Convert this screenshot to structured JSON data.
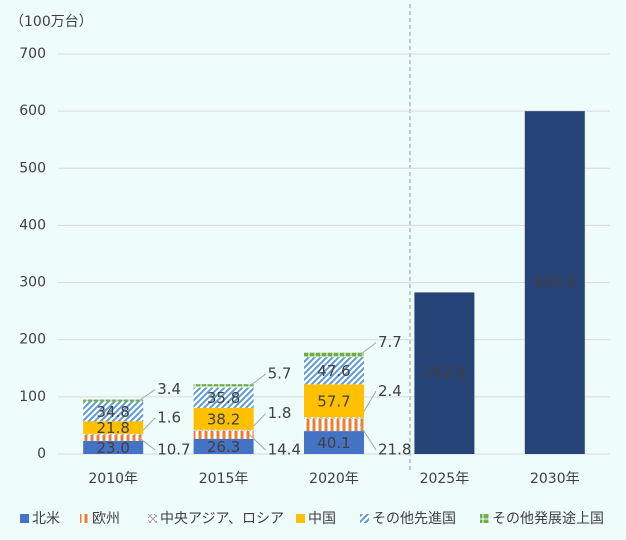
{
  "chart_data": {
    "type": "bar",
    "stacked": true,
    "y_axis_label": "（100万台）",
    "categories": [
      "2010年",
      "2015年",
      "2020年",
      "2025年",
      "2030年"
    ],
    "series": [
      {
        "name": "北米",
        "color": "#4472c4",
        "pattern": "solid",
        "values": [
          23.0,
          26.3,
          40.1,
          null,
          null
        ],
        "value_labels": [
          "23.0",
          "26.3",
          "40.1",
          null,
          null
        ]
      },
      {
        "name": "欧州",
        "color": "#ed7d31",
        "pattern": "vertical",
        "values": [
          10.7,
          14.4,
          21.8,
          null,
          null
        ],
        "value_labels": [
          "10.7",
          "14.4",
          "21.8",
          null,
          null
        ]
      },
      {
        "name": "中央アジア、ロシア",
        "color": "#a5a5a5",
        "pattern": "cross",
        "values": [
          1.6,
          1.8,
          2.4,
          null,
          null
        ],
        "value_labels": [
          "1.6",
          "1.8",
          "2.4",
          null,
          null
        ]
      },
      {
        "name": "中国",
        "color": "#ffc000",
        "pattern": "solid",
        "values": [
          21.8,
          38.2,
          57.7,
          null,
          null
        ],
        "value_labels": [
          "21.8",
          "38.2",
          "57.7",
          null,
          null
        ]
      },
      {
        "name": "その他先進国",
        "color": "#5b9bd5",
        "pattern": "diagonal",
        "values": [
          34.8,
          35.8,
          47.6,
          null,
          null
        ],
        "value_labels": [
          "34.8",
          "35.8",
          "47.6",
          null,
          null
        ]
      },
      {
        "name": "その他発展途上国",
        "color": "#70ad47",
        "pattern": "grid",
        "values": [
          3.4,
          5.7,
          7.7,
          null,
          null
        ],
        "value_labels": [
          "3.4",
          "5.7",
          "7.7",
          null,
          null
        ]
      }
    ],
    "totals": {
      "color": "#264478",
      "values": [
        null,
        null,
        null,
        282.8,
        600.0
      ],
      "value_labels": [
        null,
        null,
        null,
        "282.8",
        "600.0"
      ]
    },
    "ylim": [
      0,
      700
    ],
    "yticks": [
      0,
      100,
      200,
      300,
      400,
      500,
      600,
      700
    ],
    "grid": true,
    "legend": "bottom"
  }
}
